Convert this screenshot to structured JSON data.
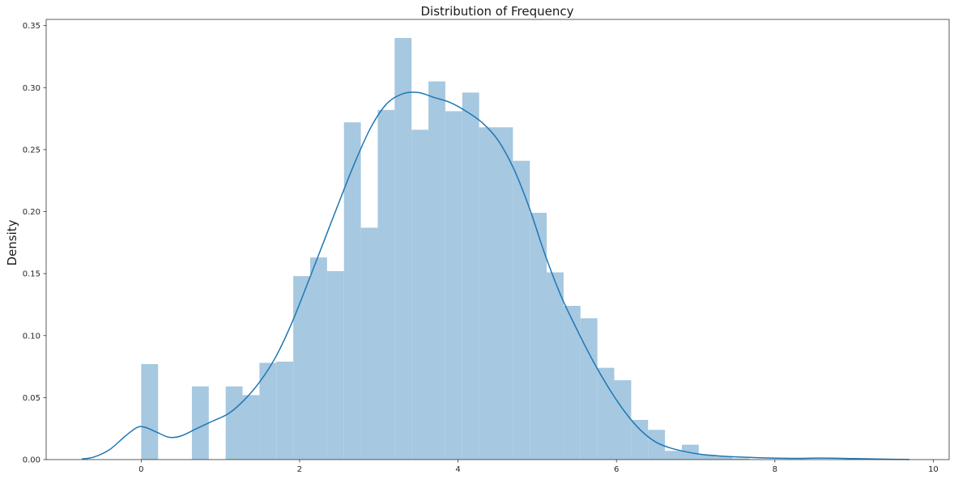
{
  "chart_data": {
    "type": "bar",
    "title": "Distribution of Frequency",
    "xlabel": "",
    "ylabel": "Density",
    "xlim": [
      -1.2,
      10.2
    ],
    "ylim": [
      0,
      0.355
    ],
    "xticks": [
      0,
      2,
      4,
      6,
      8,
      10
    ],
    "xtick_labels": [
      "0",
      "2",
      "4",
      "6",
      "8",
      "10"
    ],
    "yticks": [
      0.0,
      0.05,
      0.1,
      0.15,
      0.2,
      0.25,
      0.3,
      0.35
    ],
    "ytick_labels": [
      "0.00",
      "0.05",
      "0.10",
      "0.15",
      "0.20",
      "0.25",
      "0.30",
      "0.35"
    ],
    "grid": false,
    "bin_start": 0.0,
    "bin_width": 0.2133,
    "values": [
      0.077,
      0,
      0,
      0.059,
      0,
      0.059,
      0.052,
      0.078,
      0.079,
      0.148,
      0.163,
      0.152,
      0.272,
      0.187,
      0.282,
      0.34,
      0.266,
      0.305,
      0.281,
      0.296,
      0.268,
      0.268,
      0.241,
      0.199,
      0.151,
      0.124,
      0.114,
      0.074,
      0.064,
      0.032,
      0.024,
      0.007,
      0.012,
      0.004,
      0.0025,
      0.001,
      0,
      0,
      0,
      0,
      0,
      0
    ],
    "bar_color": "#a6c8e0",
    "kde": {
      "x": [
        -0.75,
        -0.6,
        -0.4,
        -0.2,
        -0.05,
        0.05,
        0.2,
        0.35,
        0.5,
        0.7,
        0.9,
        1.1,
        1.3,
        1.5,
        1.7,
        1.9,
        2.1,
        2.3,
        2.5,
        2.7,
        2.9,
        3.1,
        3.3,
        3.5,
        3.7,
        3.9,
        4.1,
        4.3,
        4.5,
        4.7,
        4.9,
        5.1,
        5.3,
        5.5,
        5.7,
        5.9,
        6.1,
        6.3,
        6.5,
        6.7,
        6.9,
        7.1,
        7.4,
        7.8,
        8.2,
        8.6,
        9.0,
        9.4,
        9.7
      ],
      "y": [
        0.0005,
        0.002,
        0.008,
        0.019,
        0.026,
        0.026,
        0.022,
        0.018,
        0.019,
        0.025,
        0.031,
        0.037,
        0.048,
        0.063,
        0.083,
        0.11,
        0.142,
        0.175,
        0.208,
        0.24,
        0.268,
        0.287,
        0.295,
        0.296,
        0.292,
        0.288,
        0.281,
        0.272,
        0.258,
        0.235,
        0.203,
        0.165,
        0.132,
        0.105,
        0.08,
        0.058,
        0.039,
        0.024,
        0.014,
        0.009,
        0.006,
        0.004,
        0.0025,
        0.0015,
        0.001,
        0.0012,
        0.0008,
        0.0003,
        0.0001
      ],
      "color": "#1f77b4"
    }
  }
}
